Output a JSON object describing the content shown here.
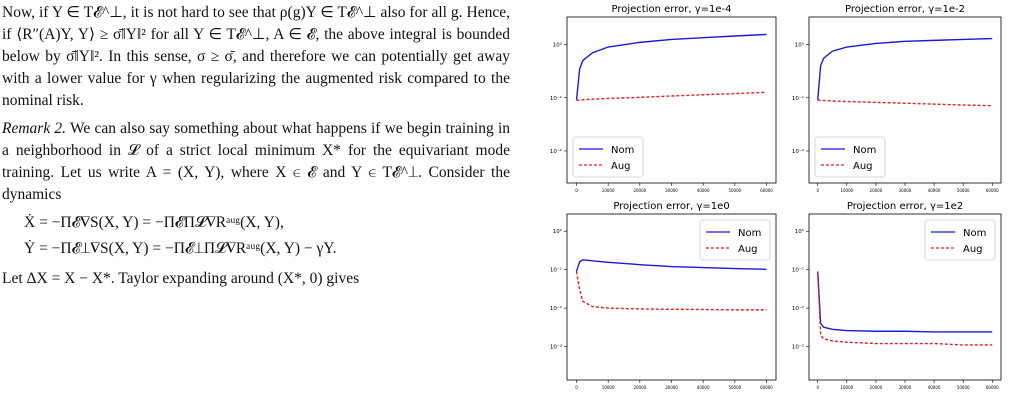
{
  "text": {
    "paragraphs": [
      "Now, if Y ∈ T𝓔^⊥, it is not hard to see that ρ(g)Y ∈ T𝓔^⊥ also for all g. Hence, if ⟨R″(A)Y, Y⟩ ≥ σ̄‖Y‖² for all Y ∈ T𝓔^⊥, A ∈ 𝓔, the above integral is bounded below by σ̄‖Y‖². In this sense, σ ≥ σ̄, and therefore we can potentially get away with a lower value for γ when regularizing the augmented risk compared to the nominal risk."
    ],
    "remark_label": "Remark 2.",
    "remark_text": "We can also say something about what happens if we begin training in a neighborhood in 𝓛 of a strict local minimum X* for the equivariant mode training. Let us write A = (X, Y), where X ∈ 𝓔 and Y ∈ T𝓔^⊥. Consider the dynamics",
    "equations": [
      "Ẋ = −Π𝓔∇S(X, Y) = −Π𝓔Π𝓛∇Rᵃᵘᵍ(X, Y),",
      "Ẏ = −Π𝓔⊥∇S(X, Y) = −Π𝓔⊥Π𝓛∇Rᵃᵘᵍ(X, Y) − γY."
    ],
    "closing": "Let ΔX = X − X*. Taylor expanding around (X*, 0) gives"
  },
  "chart_data": [
    {
      "type": "line",
      "title": "Projection error, γ=1e-4",
      "log_y": true,
      "legend": "lower-left",
      "x": [
        0,
        1000,
        2000,
        5000,
        10000,
        20000,
        30000,
        40000,
        50000,
        60000
      ],
      "series": [
        {
          "name": "Nom",
          "color": "#1a1ad6",
          "linestyle": "solid",
          "values": [
            0.09,
            0.35,
            0.5,
            0.7,
            0.9,
            1.1,
            1.25,
            1.35,
            1.45,
            1.55
          ]
        },
        {
          "name": "Aug",
          "color": "#e02020",
          "linestyle": "dashed",
          "values": [
            0.09,
            0.09,
            0.092,
            0.094,
            0.097,
            0.102,
            0.108,
            0.114,
            0.12,
            0.127
          ]
        }
      ],
      "xlim": [
        -3000,
        63000
      ],
      "xticks": [
        0,
        10000,
        20000,
        30000,
        40000,
        50000,
        60000
      ],
      "ylim": [
        0.0025,
        3.3
      ],
      "yticks": [
        {
          "value": 1,
          "label": "10⁰"
        },
        {
          "value": 0.1,
          "label": "10⁻¹"
        },
        {
          "value": 0.01,
          "label": "10⁻²"
        }
      ]
    },
    {
      "type": "line",
      "title": "Projection error, γ=1e-2",
      "log_y": true,
      "legend": "lower-left",
      "x": [
        0,
        1000,
        2000,
        5000,
        10000,
        20000,
        30000,
        40000,
        50000,
        60000
      ],
      "series": [
        {
          "name": "Nom",
          "color": "#1a1ad6",
          "linestyle": "solid",
          "values": [
            0.09,
            0.4,
            0.55,
            0.75,
            0.9,
            1.05,
            1.15,
            1.2,
            1.25,
            1.3
          ]
        },
        {
          "name": "Aug",
          "color": "#e02020",
          "linestyle": "dashed",
          "values": [
            0.09,
            0.09,
            0.089,
            0.087,
            0.085,
            0.082,
            0.079,
            0.076,
            0.073,
            0.071
          ]
        }
      ],
      "xlim": [
        -3000,
        63000
      ],
      "xticks": [
        0,
        10000,
        20000,
        30000,
        40000,
        50000,
        60000
      ],
      "ylim": [
        0.0025,
        3.3
      ],
      "yticks": [
        {
          "value": 1,
          "label": "10⁰"
        },
        {
          "value": 0.1,
          "label": "10⁻¹"
        },
        {
          "value": 0.01,
          "label": "10⁻²"
        }
      ]
    },
    {
      "type": "line",
      "title": "Projection error, γ=1e0",
      "log_y": true,
      "legend": "upper-right",
      "x": [
        0,
        1000,
        2000,
        5000,
        10000,
        20000,
        30000,
        40000,
        50000,
        60000
      ],
      "series": [
        {
          "name": "Nom",
          "color": "#1a1ad6",
          "linestyle": "solid",
          "values": [
            0.09,
            0.16,
            0.18,
            0.17,
            0.155,
            0.135,
            0.12,
            0.113,
            0.107,
            0.102
          ]
        },
        {
          "name": "Aug",
          "color": "#e02020",
          "linestyle": "dashed",
          "values": [
            0.09,
            0.03,
            0.015,
            0.011,
            0.01,
            0.0095,
            0.0093,
            0.0092,
            0.009,
            0.009
          ]
        }
      ],
      "xlim": [
        -3000,
        63000
      ],
      "xticks": [
        0,
        10000,
        20000,
        30000,
        40000,
        50000,
        60000
      ],
      "ylim": [
        0.000135,
        2.8
      ],
      "yticks": [
        {
          "value": 1,
          "label": "10⁰"
        },
        {
          "value": 0.1,
          "label": "10⁻¹"
        },
        {
          "value": 0.01,
          "label": "10⁻²"
        },
        {
          "value": 0.001,
          "label": "10⁻³"
        }
      ]
    },
    {
      "type": "line",
      "title": "Projection error, γ=1e2",
      "log_y": true,
      "legend": "upper-right",
      "x": [
        0,
        1000,
        2000,
        5000,
        10000,
        20000,
        30000,
        40000,
        50000,
        60000
      ],
      "series": [
        {
          "name": "Nom",
          "color": "#1a1ad6",
          "linestyle": "solid",
          "values": [
            0.09,
            0.004,
            0.0032,
            0.0028,
            0.0026,
            0.0025,
            0.0025,
            0.0024,
            0.0024,
            0.0024
          ]
        },
        {
          "name": "Aug",
          "color": "#e02020",
          "linestyle": "dashed",
          "values": [
            0.09,
            0.002,
            0.0016,
            0.0014,
            0.0013,
            0.0012,
            0.0012,
            0.0012,
            0.0011,
            0.0011
          ]
        }
      ],
      "xlim": [
        -3000,
        63000
      ],
      "xticks": [
        0,
        10000,
        20000,
        30000,
        40000,
        50000,
        60000
      ],
      "ylim": [
        0.000135,
        2.8
      ],
      "yticks": [
        {
          "value": 1,
          "label": "10⁰"
        },
        {
          "value": 0.1,
          "label": "10⁻¹"
        },
        {
          "value": 0.01,
          "label": "10⁻²"
        },
        {
          "value": 0.001,
          "label": "10⁻³"
        }
      ]
    }
  ]
}
